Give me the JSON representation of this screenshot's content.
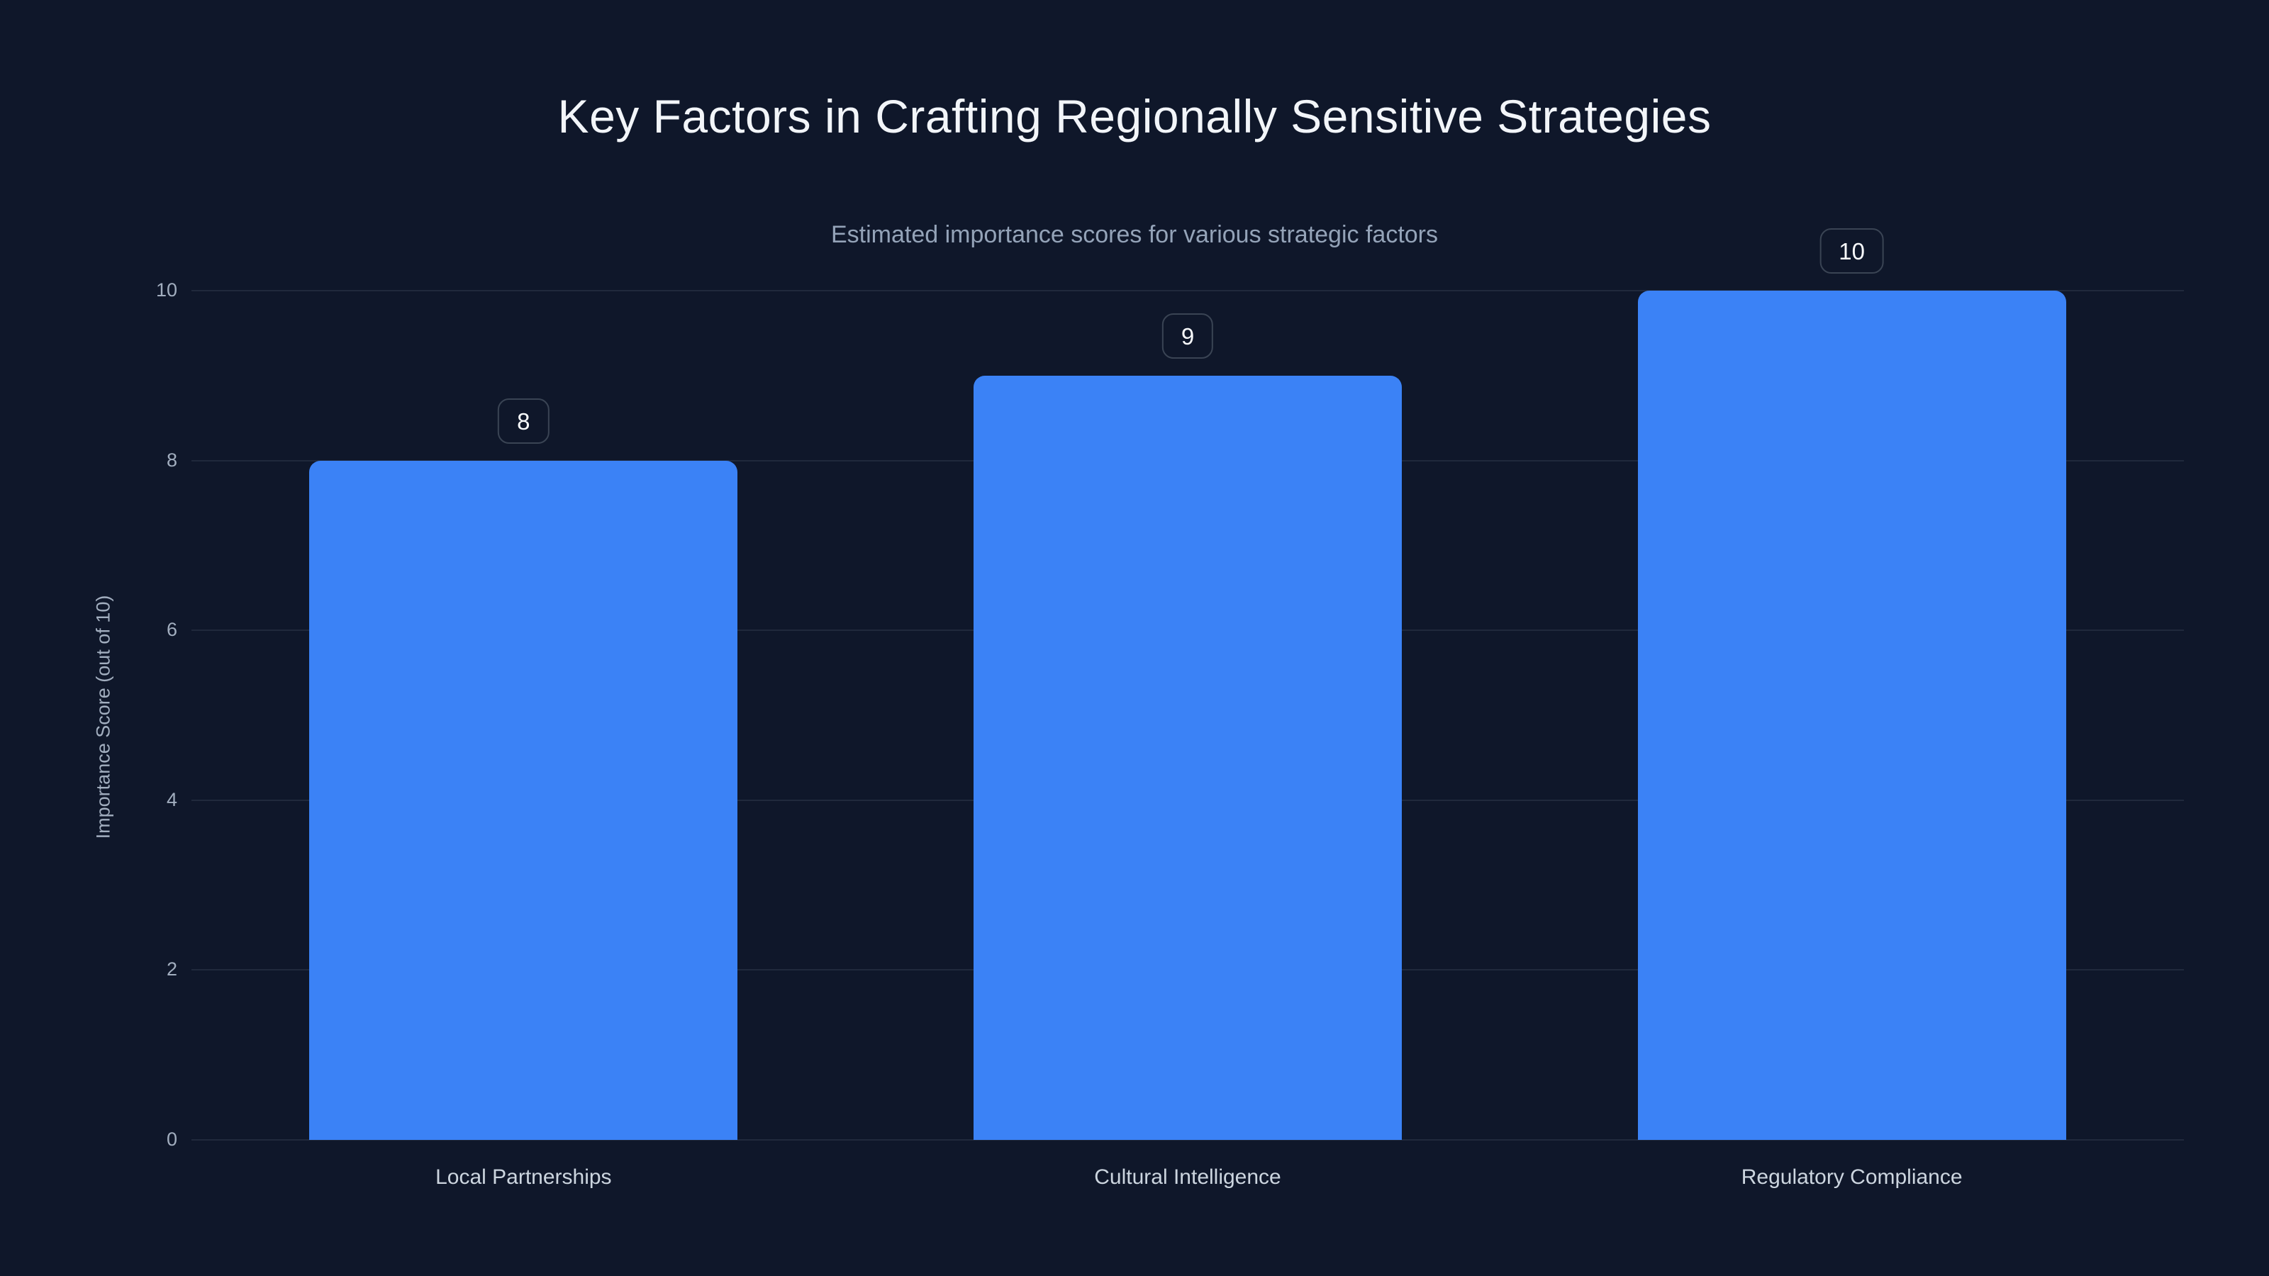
{
  "chart_data": {
    "type": "bar",
    "title": "Key Factors in Crafting Regionally Sensitive Strategies",
    "subtitle": "Estimated importance scores for various strategic factors",
    "categories": [
      "Local Partnerships",
      "Cultural Intelligence",
      "Regulatory Compliance"
    ],
    "values": [
      8,
      9,
      10
    ],
    "value_labels": [
      "8",
      "9",
      "10"
    ],
    "xlabel": "",
    "ylabel": "Importance Score (out of 10)",
    "ylim": [
      0,
      10
    ],
    "yticks": [
      0,
      2,
      4,
      6,
      8,
      10
    ],
    "grid": true,
    "legend": false,
    "colors": {
      "background": "#0f172a",
      "bar": "#3b82f6",
      "grid": "#243044",
      "title": "#f2f5f9",
      "subtitle": "#94a3b8",
      "tick_label": "#a2aebf",
      "category_label": "#ccd5df",
      "badge_border": "#3a4454",
      "badge_text": "#f8fafc"
    }
  }
}
